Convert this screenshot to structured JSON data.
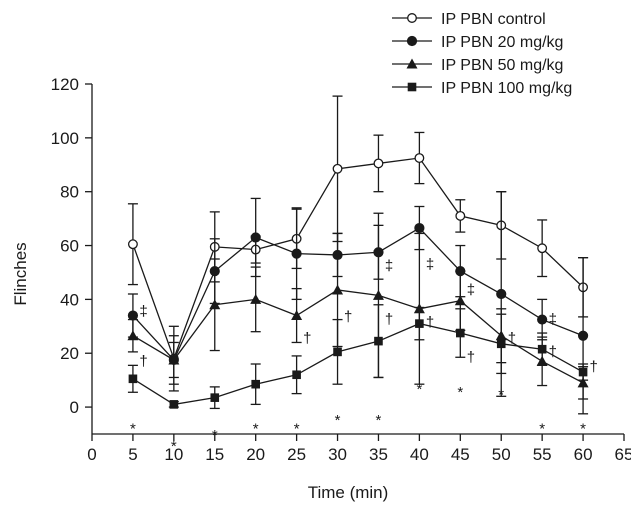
{
  "chart_data": {
    "type": "line",
    "xlabel": "Time (min)",
    "ylabel": "Flinches",
    "xlim": [
      0,
      65
    ],
    "ylim": [
      -10,
      120
    ],
    "x_ticks": [
      0,
      5,
      10,
      15,
      20,
      25,
      30,
      35,
      40,
      45,
      50,
      55,
      60,
      65
    ],
    "y_ticks": [
      0,
      20,
      40,
      60,
      80,
      100,
      120
    ],
    "grid": false,
    "legend_position": "top-right",
    "series": [
      {
        "name": "IP PBN control",
        "marker": "circle-open",
        "x": [
          5,
          10,
          15,
          20,
          25,
          30,
          35,
          40,
          45,
          50,
          55,
          60
        ],
        "y": [
          60.5,
          18,
          59.5,
          58.5,
          62.5,
          88.5,
          90.5,
          92.5,
          71,
          67.5,
          59,
          44.5
        ],
        "err": [
          15,
          12,
          13,
          5,
          11,
          27,
          10.5,
          9.5,
          6,
          12.5,
          10.5,
          11
        ]
      },
      {
        "name": "IP PBN 20 mg/kg",
        "marker": "circle-filled",
        "x": [
          5,
          10,
          15,
          20,
          25,
          30,
          35,
          40,
          45,
          50,
          55,
          60
        ],
        "y": [
          34,
          17.5,
          50.5,
          63,
          57,
          56.5,
          57.5,
          66.5,
          50.5,
          42,
          32.5,
          26.5
        ],
        "err": [
          8,
          9,
          12,
          14.5,
          17,
          8,
          10,
          8,
          9.5,
          38,
          7.5,
          29
        ]
      },
      {
        "name": "IP PBN 50 mg/kg",
        "marker": "triangle-filled",
        "x": [
          5,
          10,
          15,
          20,
          25,
          30,
          35,
          40,
          45,
          50,
          55,
          60
        ],
        "y": [
          26.5,
          17.5,
          38,
          40,
          34,
          43.5,
          41.5,
          36.5,
          39.5,
          26.5,
          17,
          9
        ],
        "err": [
          6,
          6.5,
          17,
          12,
          10,
          21,
          30.5,
          28,
          11,
          10,
          9,
          6
        ]
      },
      {
        "name": "IP PBN 100 mg/kg",
        "marker": "square-filled",
        "x": [
          5,
          10,
          15,
          20,
          25,
          30,
          35,
          40,
          45,
          50,
          55,
          60
        ],
        "y": [
          10.5,
          1,
          3.5,
          8.5,
          12,
          20.5,
          24.5,
          31,
          27.5,
          23.5,
          21.5,
          13
        ],
        "err": [
          5,
          1,
          4,
          7.5,
          7,
          12,
          13.5,
          6,
          9,
          11,
          6,
          3
        ]
      }
    ],
    "annotations": [
      {
        "text": "*",
        "x": 5,
        "y": -7.5
      },
      {
        "text": "*",
        "x": 10,
        "y": -14
      },
      {
        "text": "*",
        "x": 15,
        "y": -10
      },
      {
        "text": "*",
        "x": 20,
        "y": -7.5
      },
      {
        "text": "*",
        "x": 25,
        "y": -7.5
      },
      {
        "text": "*",
        "x": 30,
        "y": -4.5
      },
      {
        "text": "*",
        "x": 35,
        "y": -4.5
      },
      {
        "text": "*",
        "x": 40,
        "y": 7
      },
      {
        "text": "*",
        "x": 45,
        "y": 6
      },
      {
        "text": "*",
        "x": 50,
        "y": 5
      },
      {
        "text": "*",
        "x": 55,
        "y": -7.5
      },
      {
        "text": "*",
        "x": 60,
        "y": -7.5
      },
      {
        "text": "‡",
        "x": 6.3,
        "y": 36
      },
      {
        "text": "†",
        "x": 6.3,
        "y": 17.5
      },
      {
        "text": "†",
        "x": 26.3,
        "y": 26
      },
      {
        "text": "†",
        "x": 31.3,
        "y": 34
      },
      {
        "text": "‡",
        "x": 36.3,
        "y": 53
      },
      {
        "text": "†",
        "x": 36.3,
        "y": 33
      },
      {
        "text": "‡",
        "x": 41.3,
        "y": 53.5
      },
      {
        "text": "†",
        "x": 41.3,
        "y": 32
      },
      {
        "text": "‡",
        "x": 46.3,
        "y": 44
      },
      {
        "text": "†",
        "x": 46.3,
        "y": 19
      },
      {
        "text": "†",
        "x": 51.3,
        "y": 26
      },
      {
        "text": "‡",
        "x": 56.3,
        "y": 33
      },
      {
        "text": "†",
        "x": 56.3,
        "y": 21
      },
      {
        "text": "†",
        "x": 61.3,
        "y": 15.5
      }
    ]
  }
}
